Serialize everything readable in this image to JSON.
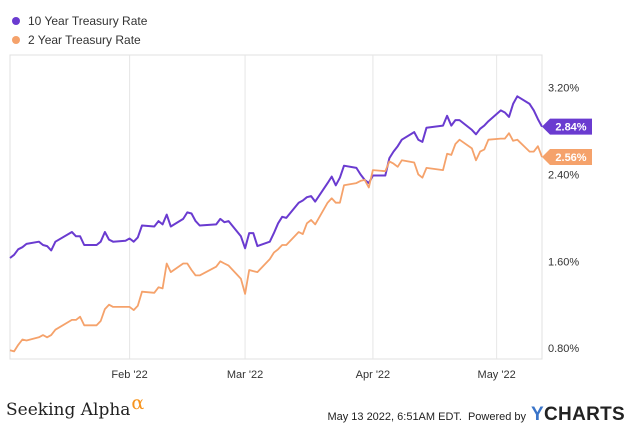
{
  "chart_data": {
    "type": "line",
    "title": "",
    "xlabel": "",
    "ylabel": "",
    "x_range": [
      "2022-01-03",
      "2022-05-12"
    ],
    "ylim": [
      0.7,
      3.5
    ],
    "y_ticks": [
      0.8,
      1.6,
      2.4,
      3.2
    ],
    "y_tick_labels": [
      "0.80%",
      "1.60%",
      "2.40%",
      "3.20%"
    ],
    "x_ticks": [
      "2022-02-01",
      "2022-03-01",
      "2022-04-01",
      "2022-05-01"
    ],
    "x_tick_labels": [
      "Feb '22",
      "Mar '22",
      "Apr '22",
      "May '22"
    ],
    "grid": "vertical",
    "legend": "top-left",
    "series": [
      {
        "name": "10 Year Treasury Rate",
        "color": "#6a3bd0",
        "end_label": "2.84%",
        "points": [
          [
            "2022-01-03",
            1.63
          ],
          [
            "2022-01-04",
            1.66
          ],
          [
            "2022-01-05",
            1.71
          ],
          [
            "2022-01-06",
            1.73
          ],
          [
            "2022-01-07",
            1.76
          ],
          [
            "2022-01-10",
            1.78
          ],
          [
            "2022-01-11",
            1.75
          ],
          [
            "2022-01-12",
            1.74
          ],
          [
            "2022-01-13",
            1.7
          ],
          [
            "2022-01-14",
            1.78
          ],
          [
            "2022-01-18",
            1.87
          ],
          [
            "2022-01-19",
            1.83
          ],
          [
            "2022-01-20",
            1.83
          ],
          [
            "2022-01-21",
            1.75
          ],
          [
            "2022-01-24",
            1.75
          ],
          [
            "2022-01-25",
            1.78
          ],
          [
            "2022-01-26",
            1.87
          ],
          [
            "2022-01-27",
            1.8
          ],
          [
            "2022-01-28",
            1.78
          ],
          [
            "2022-01-31",
            1.79
          ],
          [
            "2022-02-01",
            1.81
          ],
          [
            "2022-02-02",
            1.78
          ],
          [
            "2022-02-03",
            1.82
          ],
          [
            "2022-02-04",
            1.93
          ],
          [
            "2022-02-07",
            1.92
          ],
          [
            "2022-02-08",
            1.97
          ],
          [
            "2022-02-09",
            1.94
          ],
          [
            "2022-02-10",
            2.03
          ],
          [
            "2022-02-11",
            1.92
          ],
          [
            "2022-02-14",
            1.99
          ],
          [
            "2022-02-15",
            2.05
          ],
          [
            "2022-02-16",
            2.04
          ],
          [
            "2022-02-17",
            1.97
          ],
          [
            "2022-02-18",
            1.93
          ],
          [
            "2022-02-22",
            1.94
          ],
          [
            "2022-02-23",
            1.99
          ],
          [
            "2022-02-24",
            1.96
          ],
          [
            "2022-02-25",
            1.97
          ],
          [
            "2022-02-28",
            1.83
          ],
          [
            "2022-03-01",
            1.72
          ],
          [
            "2022-03-02",
            1.86
          ],
          [
            "2022-03-03",
            1.86
          ],
          [
            "2022-03-04",
            1.74
          ],
          [
            "2022-03-07",
            1.78
          ],
          [
            "2022-03-08",
            1.86
          ],
          [
            "2022-03-09",
            1.95
          ],
          [
            "2022-03-10",
            2.01
          ],
          [
            "2022-03-11",
            2.0
          ],
          [
            "2022-03-14",
            2.14
          ],
          [
            "2022-03-15",
            2.16
          ],
          [
            "2022-03-16",
            2.19
          ],
          [
            "2022-03-17",
            2.2
          ],
          [
            "2022-03-18",
            2.15
          ],
          [
            "2022-03-21",
            2.32
          ],
          [
            "2022-03-22",
            2.38
          ],
          [
            "2022-03-23",
            2.3
          ],
          [
            "2022-03-24",
            2.37
          ],
          [
            "2022-03-25",
            2.48
          ],
          [
            "2022-03-28",
            2.46
          ],
          [
            "2022-03-29",
            2.4
          ],
          [
            "2022-03-30",
            2.35
          ],
          [
            "2022-03-31",
            2.32
          ],
          [
            "2022-04-01",
            2.39
          ],
          [
            "2022-04-04",
            2.39
          ],
          [
            "2022-04-05",
            2.55
          ],
          [
            "2022-04-06",
            2.61
          ],
          [
            "2022-04-07",
            2.66
          ],
          [
            "2022-04-08",
            2.72
          ],
          [
            "2022-04-11",
            2.79
          ],
          [
            "2022-04-12",
            2.72
          ],
          [
            "2022-04-13",
            2.7
          ],
          [
            "2022-04-14",
            2.83
          ],
          [
            "2022-04-18",
            2.85
          ],
          [
            "2022-04-19",
            2.94
          ],
          [
            "2022-04-20",
            2.85
          ],
          [
            "2022-04-21",
            2.9
          ],
          [
            "2022-04-22",
            2.9
          ],
          [
            "2022-04-25",
            2.81
          ],
          [
            "2022-04-26",
            2.77
          ],
          [
            "2022-04-27",
            2.82
          ],
          [
            "2022-04-28",
            2.85
          ],
          [
            "2022-04-29",
            2.89
          ],
          [
            "2022-05-02",
            2.99
          ],
          [
            "2022-05-03",
            2.97
          ],
          [
            "2022-05-04",
            2.93
          ],
          [
            "2022-05-05",
            3.05
          ],
          [
            "2022-05-06",
            3.12
          ],
          [
            "2022-05-09",
            3.05
          ],
          [
            "2022-05-10",
            2.99
          ],
          [
            "2022-05-11",
            2.91
          ],
          [
            "2022-05-12",
            2.84
          ]
        ]
      },
      {
        "name": "2 Year Treasury Rate",
        "color": "#f5a26b",
        "end_label": "2.56%",
        "points": [
          [
            "2022-01-03",
            0.78
          ],
          [
            "2022-01-04",
            0.77
          ],
          [
            "2022-01-05",
            0.83
          ],
          [
            "2022-01-06",
            0.88
          ],
          [
            "2022-01-07",
            0.87
          ],
          [
            "2022-01-10",
            0.9
          ],
          [
            "2022-01-11",
            0.92
          ],
          [
            "2022-01-12",
            0.9
          ],
          [
            "2022-01-13",
            0.92
          ],
          [
            "2022-01-14",
            0.97
          ],
          [
            "2022-01-18",
            1.06
          ],
          [
            "2022-01-19",
            1.06
          ],
          [
            "2022-01-20",
            1.09
          ],
          [
            "2022-01-21",
            1.01
          ],
          [
            "2022-01-24",
            1.01
          ],
          [
            "2022-01-25",
            1.05
          ],
          [
            "2022-01-26",
            1.16
          ],
          [
            "2022-01-27",
            1.2
          ],
          [
            "2022-01-28",
            1.18
          ],
          [
            "2022-01-31",
            1.18
          ],
          [
            "2022-02-01",
            1.18
          ],
          [
            "2022-02-02",
            1.15
          ],
          [
            "2022-02-03",
            1.19
          ],
          [
            "2022-02-04",
            1.32
          ],
          [
            "2022-02-07",
            1.31
          ],
          [
            "2022-02-08",
            1.36
          ],
          [
            "2022-02-09",
            1.35
          ],
          [
            "2022-02-10",
            1.58
          ],
          [
            "2022-02-11",
            1.5
          ],
          [
            "2022-02-14",
            1.58
          ],
          [
            "2022-02-15",
            1.58
          ],
          [
            "2022-02-16",
            1.52
          ],
          [
            "2022-02-17",
            1.47
          ],
          [
            "2022-02-18",
            1.47
          ],
          [
            "2022-02-22",
            1.55
          ],
          [
            "2022-02-23",
            1.6
          ],
          [
            "2022-02-24",
            1.58
          ],
          [
            "2022-02-25",
            1.56
          ],
          [
            "2022-02-28",
            1.44
          ],
          [
            "2022-03-01",
            1.3
          ],
          [
            "2022-03-02",
            1.52
          ],
          [
            "2022-03-03",
            1.51
          ],
          [
            "2022-03-04",
            1.5
          ],
          [
            "2022-03-07",
            1.62
          ],
          [
            "2022-03-08",
            1.68
          ],
          [
            "2022-03-09",
            1.71
          ],
          [
            "2022-03-10",
            1.75
          ],
          [
            "2022-03-11",
            1.75
          ],
          [
            "2022-03-14",
            1.87
          ],
          [
            "2022-03-15",
            1.85
          ],
          [
            "2022-03-16",
            1.95
          ],
          [
            "2022-03-17",
            1.98
          ],
          [
            "2022-03-18",
            1.94
          ],
          [
            "2022-03-21",
            2.14
          ],
          [
            "2022-03-22",
            2.18
          ],
          [
            "2022-03-23",
            2.14
          ],
          [
            "2022-03-24",
            2.14
          ],
          [
            "2022-03-25",
            2.3
          ],
          [
            "2022-03-28",
            2.32
          ],
          [
            "2022-03-29",
            2.34
          ],
          [
            "2022-03-30",
            2.35
          ],
          [
            "2022-03-31",
            2.28
          ],
          [
            "2022-04-01",
            2.44
          ],
          [
            "2022-04-04",
            2.43
          ],
          [
            "2022-04-05",
            2.52
          ],
          [
            "2022-04-06",
            2.5
          ],
          [
            "2022-04-07",
            2.47
          ],
          [
            "2022-04-08",
            2.53
          ],
          [
            "2022-04-11",
            2.51
          ],
          [
            "2022-04-12",
            2.4
          ],
          [
            "2022-04-13",
            2.37
          ],
          [
            "2022-04-14",
            2.46
          ],
          [
            "2022-04-18",
            2.44
          ],
          [
            "2022-04-19",
            2.59
          ],
          [
            "2022-04-20",
            2.58
          ],
          [
            "2022-04-21",
            2.68
          ],
          [
            "2022-04-22",
            2.72
          ],
          [
            "2022-04-25",
            2.64
          ],
          [
            "2022-04-26",
            2.53
          ],
          [
            "2022-04-27",
            2.61
          ],
          [
            "2022-04-28",
            2.63
          ],
          [
            "2022-04-29",
            2.72
          ],
          [
            "2022-05-02",
            2.73
          ],
          [
            "2022-05-03",
            2.73
          ],
          [
            "2022-05-04",
            2.78
          ],
          [
            "2022-05-05",
            2.71
          ],
          [
            "2022-05-06",
            2.72
          ],
          [
            "2022-05-09",
            2.61
          ],
          [
            "2022-05-10",
            2.61
          ],
          [
            "2022-05-11",
            2.66
          ],
          [
            "2022-05-12",
            2.56
          ]
        ]
      }
    ]
  },
  "footer": {
    "brand": "Seeking Alpha",
    "brand_symbol": "α",
    "timestamp": "May 13 2022, 6:51AM EDT.",
    "powered_by": "Powered by",
    "logo_y": "Y",
    "logo_rest": "CHARTS"
  }
}
